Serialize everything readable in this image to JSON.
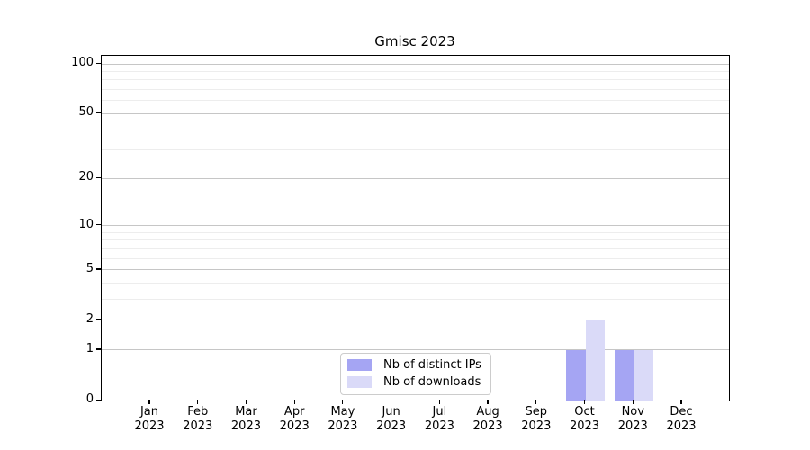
{
  "chart_data": {
    "type": "bar",
    "title": "Gmisc 2023",
    "categories": [
      "Jan 2023",
      "Feb 2023",
      "Mar 2023",
      "Apr 2023",
      "May 2023",
      "Jun 2023",
      "Jul 2023",
      "Aug 2023",
      "Sep 2023",
      "Oct 2023",
      "Nov 2023",
      "Dec 2023"
    ],
    "series": [
      {
        "name": "Nb of distinct IPs",
        "color": "#a5a5f3",
        "values": [
          0,
          0,
          0,
          0,
          0,
          0,
          0,
          0,
          0,
          1,
          1,
          0
        ]
      },
      {
        "name": "Nb of downloads",
        "color": "#dadaf8",
        "values": [
          0,
          0,
          0,
          0,
          0,
          0,
          0,
          0,
          0,
          2,
          1,
          0
        ]
      }
    ],
    "xlabel": "",
    "ylabel": "",
    "yscale": "log1p",
    "ylim": [
      0,
      112
    ],
    "yticks": [
      0,
      1,
      2,
      5,
      10,
      20,
      50,
      100
    ],
    "minor_gridlines": [
      3,
      4,
      6,
      7,
      8,
      9,
      30,
      40,
      60,
      70,
      80,
      90
    ],
    "grid": "horizontal",
    "legend": {
      "position": "inside-bottom-center",
      "labels": [
        "Nb of distinct IPs",
        "Nb of downloads"
      ]
    },
    "colors": {
      "major_grid": "#c6c6c6",
      "minor_grid": "#ededed",
      "spine": "#000000",
      "background": "#ffffff"
    }
  }
}
